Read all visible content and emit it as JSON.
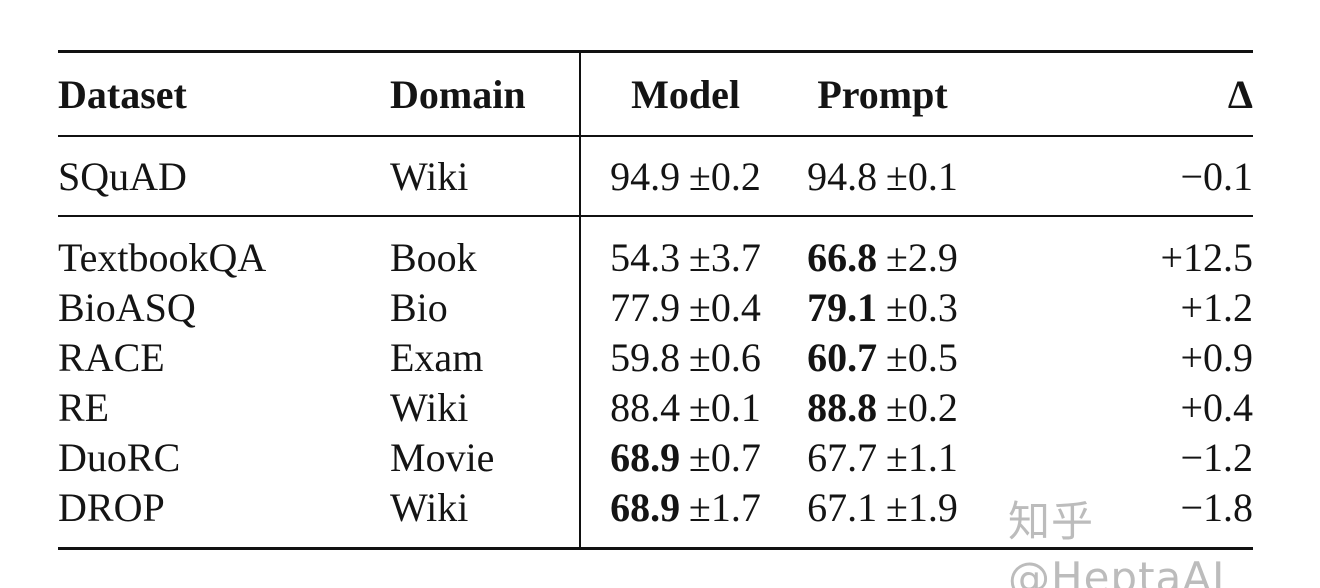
{
  "table": {
    "columns": [
      {
        "label": "Dataset"
      },
      {
        "label": "Domain"
      },
      {
        "label": "Model"
      },
      {
        "label": "Prompt"
      },
      {
        "label": "Δ"
      }
    ],
    "rows": [
      {
        "dataset": "SQuAD",
        "domain": "Wiki",
        "model": {
          "value": "94.9",
          "pm": "±0.2",
          "bold": false
        },
        "prompt": {
          "value": "94.8",
          "pm": "±0.1",
          "bold": false
        },
        "delta": "−0.1"
      },
      {
        "dataset": "TextbookQA",
        "domain": "Book",
        "model": {
          "value": "54.3",
          "pm": "±3.7",
          "bold": false
        },
        "prompt": {
          "value": "66.8",
          "pm": "±2.9",
          "bold": true
        },
        "delta": "+12.5"
      },
      {
        "dataset": "BioASQ",
        "domain": "Bio",
        "model": {
          "value": "77.9",
          "pm": "±0.4",
          "bold": false
        },
        "prompt": {
          "value": "79.1",
          "pm": "±0.3",
          "bold": true
        },
        "delta": "+1.2"
      },
      {
        "dataset": "RACE",
        "domain": "Exam",
        "model": {
          "value": "59.8",
          "pm": "±0.6",
          "bold": false
        },
        "prompt": {
          "value": "60.7",
          "pm": "±0.5",
          "bold": true
        },
        "delta": "+0.9"
      },
      {
        "dataset": "RE",
        "domain": "Wiki",
        "model": {
          "value": "88.4",
          "pm": "±0.1",
          "bold": false
        },
        "prompt": {
          "value": "88.8",
          "pm": "±0.2",
          "bold": true
        },
        "delta": "+0.4"
      },
      {
        "dataset": "DuoRC",
        "domain": "Movie",
        "model": {
          "value": "68.9",
          "pm": "±0.7",
          "bold": true
        },
        "prompt": {
          "value": "67.7",
          "pm": "±1.1",
          "bold": false
        },
        "delta": "−1.2"
      },
      {
        "dataset": "DROP",
        "domain": "Wiki",
        "model": {
          "value": "68.9",
          "pm": "±1.7",
          "bold": true
        },
        "prompt": {
          "value": "67.1",
          "pm": "±1.9",
          "bold": false
        },
        "delta": "−1.8"
      }
    ]
  },
  "watermark": {
    "text": "知乎 @HeptaAI",
    "color": "#bcbcbc"
  }
}
